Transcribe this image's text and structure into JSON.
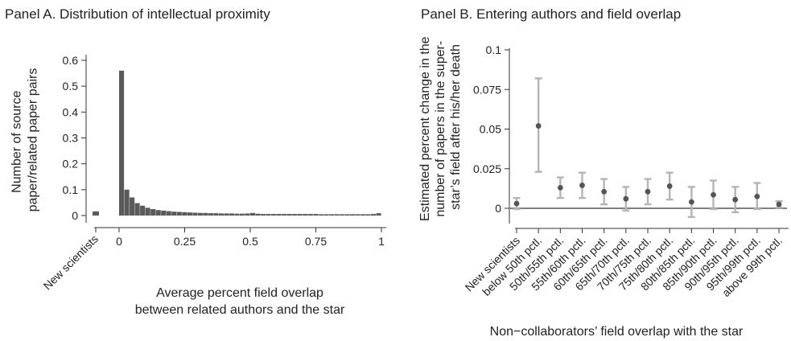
{
  "chart_data": [
    {
      "type": "bar",
      "title": "Panel A. Distribution of intellectual proximity",
      "xlabel": [
        "Average percent field overlap",
        "between related authors and the star"
      ],
      "ylabel": [
        "Number of source",
        "paper/related paper pairs"
      ],
      "ylim": [
        0,
        0.6
      ],
      "yticks": [
        "0",
        "0.1",
        "0.2",
        "0.3",
        "0.4",
        "0.5",
        "0.6"
      ],
      "xticks": [
        "0",
        "0.25",
        "0.5",
        "0.75",
        "1"
      ],
      "x_range": [
        0,
        1
      ],
      "bin_width": 0.02,
      "color": "#5a5a5a",
      "new_scientists": {
        "label": "New scientists",
        "value": 0.016
      },
      "bins": [
        {
          "x0": 0.0,
          "value": 0.56
        },
        {
          "x0": 0.02,
          "value": 0.1
        },
        {
          "x0": 0.04,
          "value": 0.07
        },
        {
          "x0": 0.06,
          "value": 0.048
        },
        {
          "x0": 0.08,
          "value": 0.038
        },
        {
          "x0": 0.1,
          "value": 0.03
        },
        {
          "x0": 0.12,
          "value": 0.025
        },
        {
          "x0": 0.14,
          "value": 0.021
        },
        {
          "x0": 0.16,
          "value": 0.019
        },
        {
          "x0": 0.18,
          "value": 0.017
        },
        {
          "x0": 0.2,
          "value": 0.015
        },
        {
          "x0": 0.22,
          "value": 0.014
        },
        {
          "x0": 0.24,
          "value": 0.013
        },
        {
          "x0": 0.26,
          "value": 0.012
        },
        {
          "x0": 0.28,
          "value": 0.011
        },
        {
          "x0": 0.3,
          "value": 0.01
        },
        {
          "x0": 0.32,
          "value": 0.01
        },
        {
          "x0": 0.34,
          "value": 0.009
        },
        {
          "x0": 0.36,
          "value": 0.009
        },
        {
          "x0": 0.38,
          "value": 0.008
        },
        {
          "x0": 0.4,
          "value": 0.008
        },
        {
          "x0": 0.42,
          "value": 0.008
        },
        {
          "x0": 0.44,
          "value": 0.007
        },
        {
          "x0": 0.46,
          "value": 0.007
        },
        {
          "x0": 0.48,
          "value": 0.008
        },
        {
          "x0": 0.5,
          "value": 0.01
        },
        {
          "x0": 0.52,
          "value": 0.007
        },
        {
          "x0": 0.54,
          "value": 0.006
        },
        {
          "x0": 0.56,
          "value": 0.006
        },
        {
          "x0": 0.58,
          "value": 0.006
        },
        {
          "x0": 0.6,
          "value": 0.006
        },
        {
          "x0": 0.62,
          "value": 0.006
        },
        {
          "x0": 0.64,
          "value": 0.006
        },
        {
          "x0": 0.66,
          "value": 0.006
        },
        {
          "x0": 0.68,
          "value": 0.006
        },
        {
          "x0": 0.7,
          "value": 0.006
        },
        {
          "x0": 0.72,
          "value": 0.006
        },
        {
          "x0": 0.74,
          "value": 0.006
        },
        {
          "x0": 0.76,
          "value": 0.005
        },
        {
          "x0": 0.78,
          "value": 0.005
        },
        {
          "x0": 0.8,
          "value": 0.005
        },
        {
          "x0": 0.82,
          "value": 0.005
        },
        {
          "x0": 0.84,
          "value": 0.005
        },
        {
          "x0": 0.86,
          "value": 0.005
        },
        {
          "x0": 0.88,
          "value": 0.005
        },
        {
          "x0": 0.9,
          "value": 0.005
        },
        {
          "x0": 0.92,
          "value": 0.005
        },
        {
          "x0": 0.94,
          "value": 0.005
        },
        {
          "x0": 0.96,
          "value": 0.006
        },
        {
          "x0": 0.98,
          "value": 0.009
        }
      ]
    },
    {
      "type": "scatter",
      "title": "Panel B. Entering authors and field overlap",
      "xlabel": "Non−collaborators’ field overlap with the star",
      "ylabel": [
        "Estimated percent change in the",
        "number of papers in the super-",
        "star’s field after his/her death"
      ],
      "ylim": [
        -0.01,
        0.1
      ],
      "yticks": [
        "0",
        "0.025",
        "0.05",
        "0.075",
        "0.1"
      ],
      "reference_line": 0,
      "point_color": "#555555",
      "ci_color": "#b5b5b5",
      "categories": [
        "New scientists",
        "below 50th pctl.",
        "50th/55th pctl.",
        "55th/60th pctl.",
        "60th/65th pctl.",
        "65th/70th pctl.",
        "70th/75th pctl.",
        "75th/80th pctl.",
        "80th/85th pctl.",
        "85th/90th pctl.",
        "90th/95th pctl.",
        "95th/99th pctl.",
        "above 99th pctl."
      ],
      "estimates": [
        0.003,
        0.052,
        0.013,
        0.0145,
        0.0105,
        0.006,
        0.0105,
        0.014,
        0.004,
        0.0085,
        0.0055,
        0.0075,
        0.0025
      ],
      "ci_low": [
        -0.0005,
        0.023,
        0.0065,
        0.0065,
        0.0025,
        -0.0015,
        0.0025,
        0.0055,
        -0.0055,
        -0.0005,
        -0.0025,
        -0.0005,
        0.0005
      ],
      "ci_high": [
        0.0065,
        0.082,
        0.0195,
        0.0225,
        0.0185,
        0.0135,
        0.0185,
        0.0225,
        0.0135,
        0.0175,
        0.0135,
        0.016,
        0.0045
      ]
    }
  ]
}
